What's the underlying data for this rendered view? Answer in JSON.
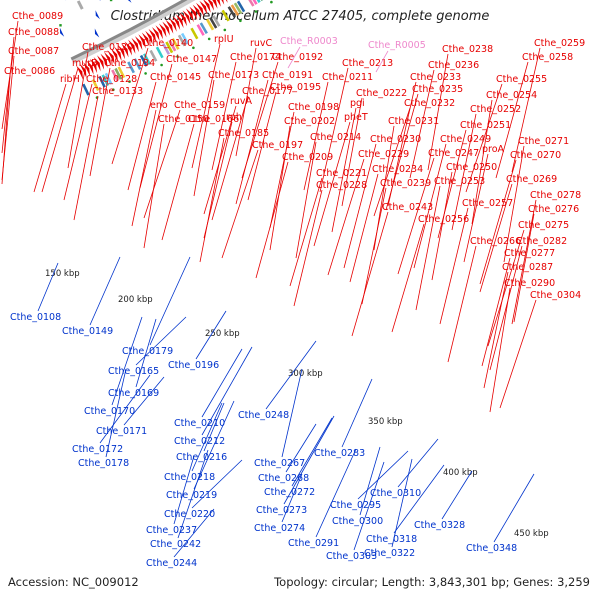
{
  "title": "Clostridium thermocellum ATCC 27405, complete genome",
  "footer": {
    "accession": "Accession: NC_009012",
    "summary": "Topology: circular; Length: 3,843,301 bp; Genes: 3,259"
  },
  "colors": {
    "forward": "#e60000",
    "reverse": "#0033cc",
    "rna": "#ee88cc",
    "backbone": "#888888",
    "tick_mark": "#229922"
  },
  "ticks": [
    "150 kbp",
    "200 kbp",
    "250 kbp",
    "300 kbp",
    "350 kbp",
    "400 kbp",
    "450 kbp"
  ],
  "forward_labels": [
    "Cthe_0089",
    "Cthe_0088",
    "Cthe_0087",
    "Cthe_0086",
    "Cthe_0120",
    "murB",
    "ribH",
    "Cthe_0128",
    "Cthe_0133",
    "Cthe_0134",
    "Cthe_0140",
    "Cthe_0147",
    "Cthe_0145",
    "eno",
    "Cthe_0150",
    "Cthe_0159",
    "Cthe_0166",
    "rplU",
    "Cthe_0174",
    "Cthe_0173",
    "Cthe_0177",
    "ruvA",
    "rph",
    "Cthe_0185",
    "ruvC",
    "Cthe_0192",
    "Cthe_0191",
    "Cthe_0195",
    "Cthe_0198",
    "Cthe_0202",
    "Cthe_0197",
    "Cthe_0209",
    "Cthe_0213",
    "Cthe_0211",
    "Cthe_0214",
    "pheT",
    "Cthe_0221",
    "Cthe_0228",
    "pgi",
    "Cthe_0222",
    "Cthe_0229",
    "Cthe_0230",
    "Cthe_0234",
    "Cthe_0239",
    "Cthe_0231",
    "Cthe_0232",
    "Cthe_0235",
    "Cthe_0233",
    "Cthe_0236",
    "Cthe_0238",
    "Cthe_0243",
    "Cthe_0256",
    "Cthe_0257",
    "Cthe_0253",
    "Cthe_0250",
    "Cthe_0247",
    "Cthe_0249",
    "Cthe_0251",
    "Cthe_0252",
    "Cthe_0254",
    "Cthe_0255",
    "Cthe_0258",
    "Cthe_0259",
    "proA",
    "Cthe_0271",
    "Cthe_0270",
    "Cthe_0269",
    "Cthe_0266",
    "Cthe_0278",
    "Cthe_0276",
    "Cthe_0275",
    "Cthe_0282",
    "Cthe_0277",
    "Cthe_0287",
    "Cthe_0290",
    "Cthe_0304"
  ],
  "rna_labels": [
    "Cthe_R0003",
    "Cthe_R0005"
  ],
  "reverse_labels": [
    "Cthe_0108",
    "Cthe_0149",
    "Cthe_0179",
    "Cthe_0165",
    "Cthe_0169",
    "Cthe_0170",
    "Cthe_0171",
    "Cthe_0172",
    "Cthe_0178",
    "Cthe_0196",
    "Cthe_0210",
    "Cthe_0212",
    "Cthe_0216",
    "Cthe_0218",
    "Cthe_0219",
    "Cthe_0220",
    "Cthe_0237",
    "Cthe_0242",
    "Cthe_0244",
    "Cthe_0248",
    "Cthe_0267",
    "Cthe_0268",
    "Cthe_0272",
    "Cthe_0273",
    "Cthe_0274",
    "Cthe_0283",
    "Cthe_0291",
    "Cthe_0295",
    "Cthe_0300",
    "Cthe_0303",
    "Cthe_0310",
    "Cthe_0318",
    "Cthe_0322",
    "Cthe_0328",
    "Cthe_0348"
  ]
}
